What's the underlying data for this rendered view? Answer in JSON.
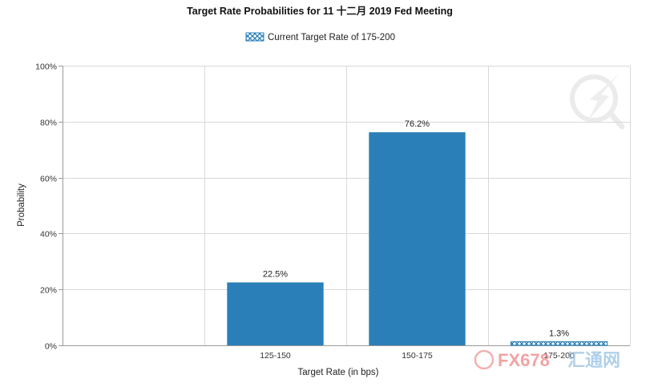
{
  "chart_data": {
    "type": "bar",
    "title": "Target Rate Probabilities for 11 十二月 2019 Fed Meeting",
    "legend": {
      "label": "Current Target Rate of 175-200",
      "position": "top-center"
    },
    "categories": [
      "125-150",
      "150-175",
      "175-200"
    ],
    "values": [
      22.5,
      76.2,
      1.3
    ],
    "data_labels": [
      "22.5%",
      "76.2%",
      "1.3%"
    ],
    "current_category": "175-200",
    "xlabel": "Target Rate (in bps)",
    "ylabel": "Probability",
    "ylim": [
      0,
      100
    ],
    "yticks": [
      {
        "value": 0,
        "label": "0%"
      },
      {
        "value": 20,
        "label": "20%"
      },
      {
        "value": 40,
        "label": "40%"
      },
      {
        "value": 60,
        "label": "60%"
      },
      {
        "value": 80,
        "label": "80%"
      },
      {
        "value": 100,
        "label": "100%"
      }
    ],
    "grid": true,
    "colors": {
      "bar": "#2b7fb8",
      "current_bar_pattern": "#2b7fb8",
      "grid": "#d9d9d9"
    }
  },
  "watermark": {
    "text": "FX678",
    "text_cn": "汇通网",
    "colors": {
      "fx": "#f08c8c",
      "cn": "#9cc4e4"
    }
  }
}
